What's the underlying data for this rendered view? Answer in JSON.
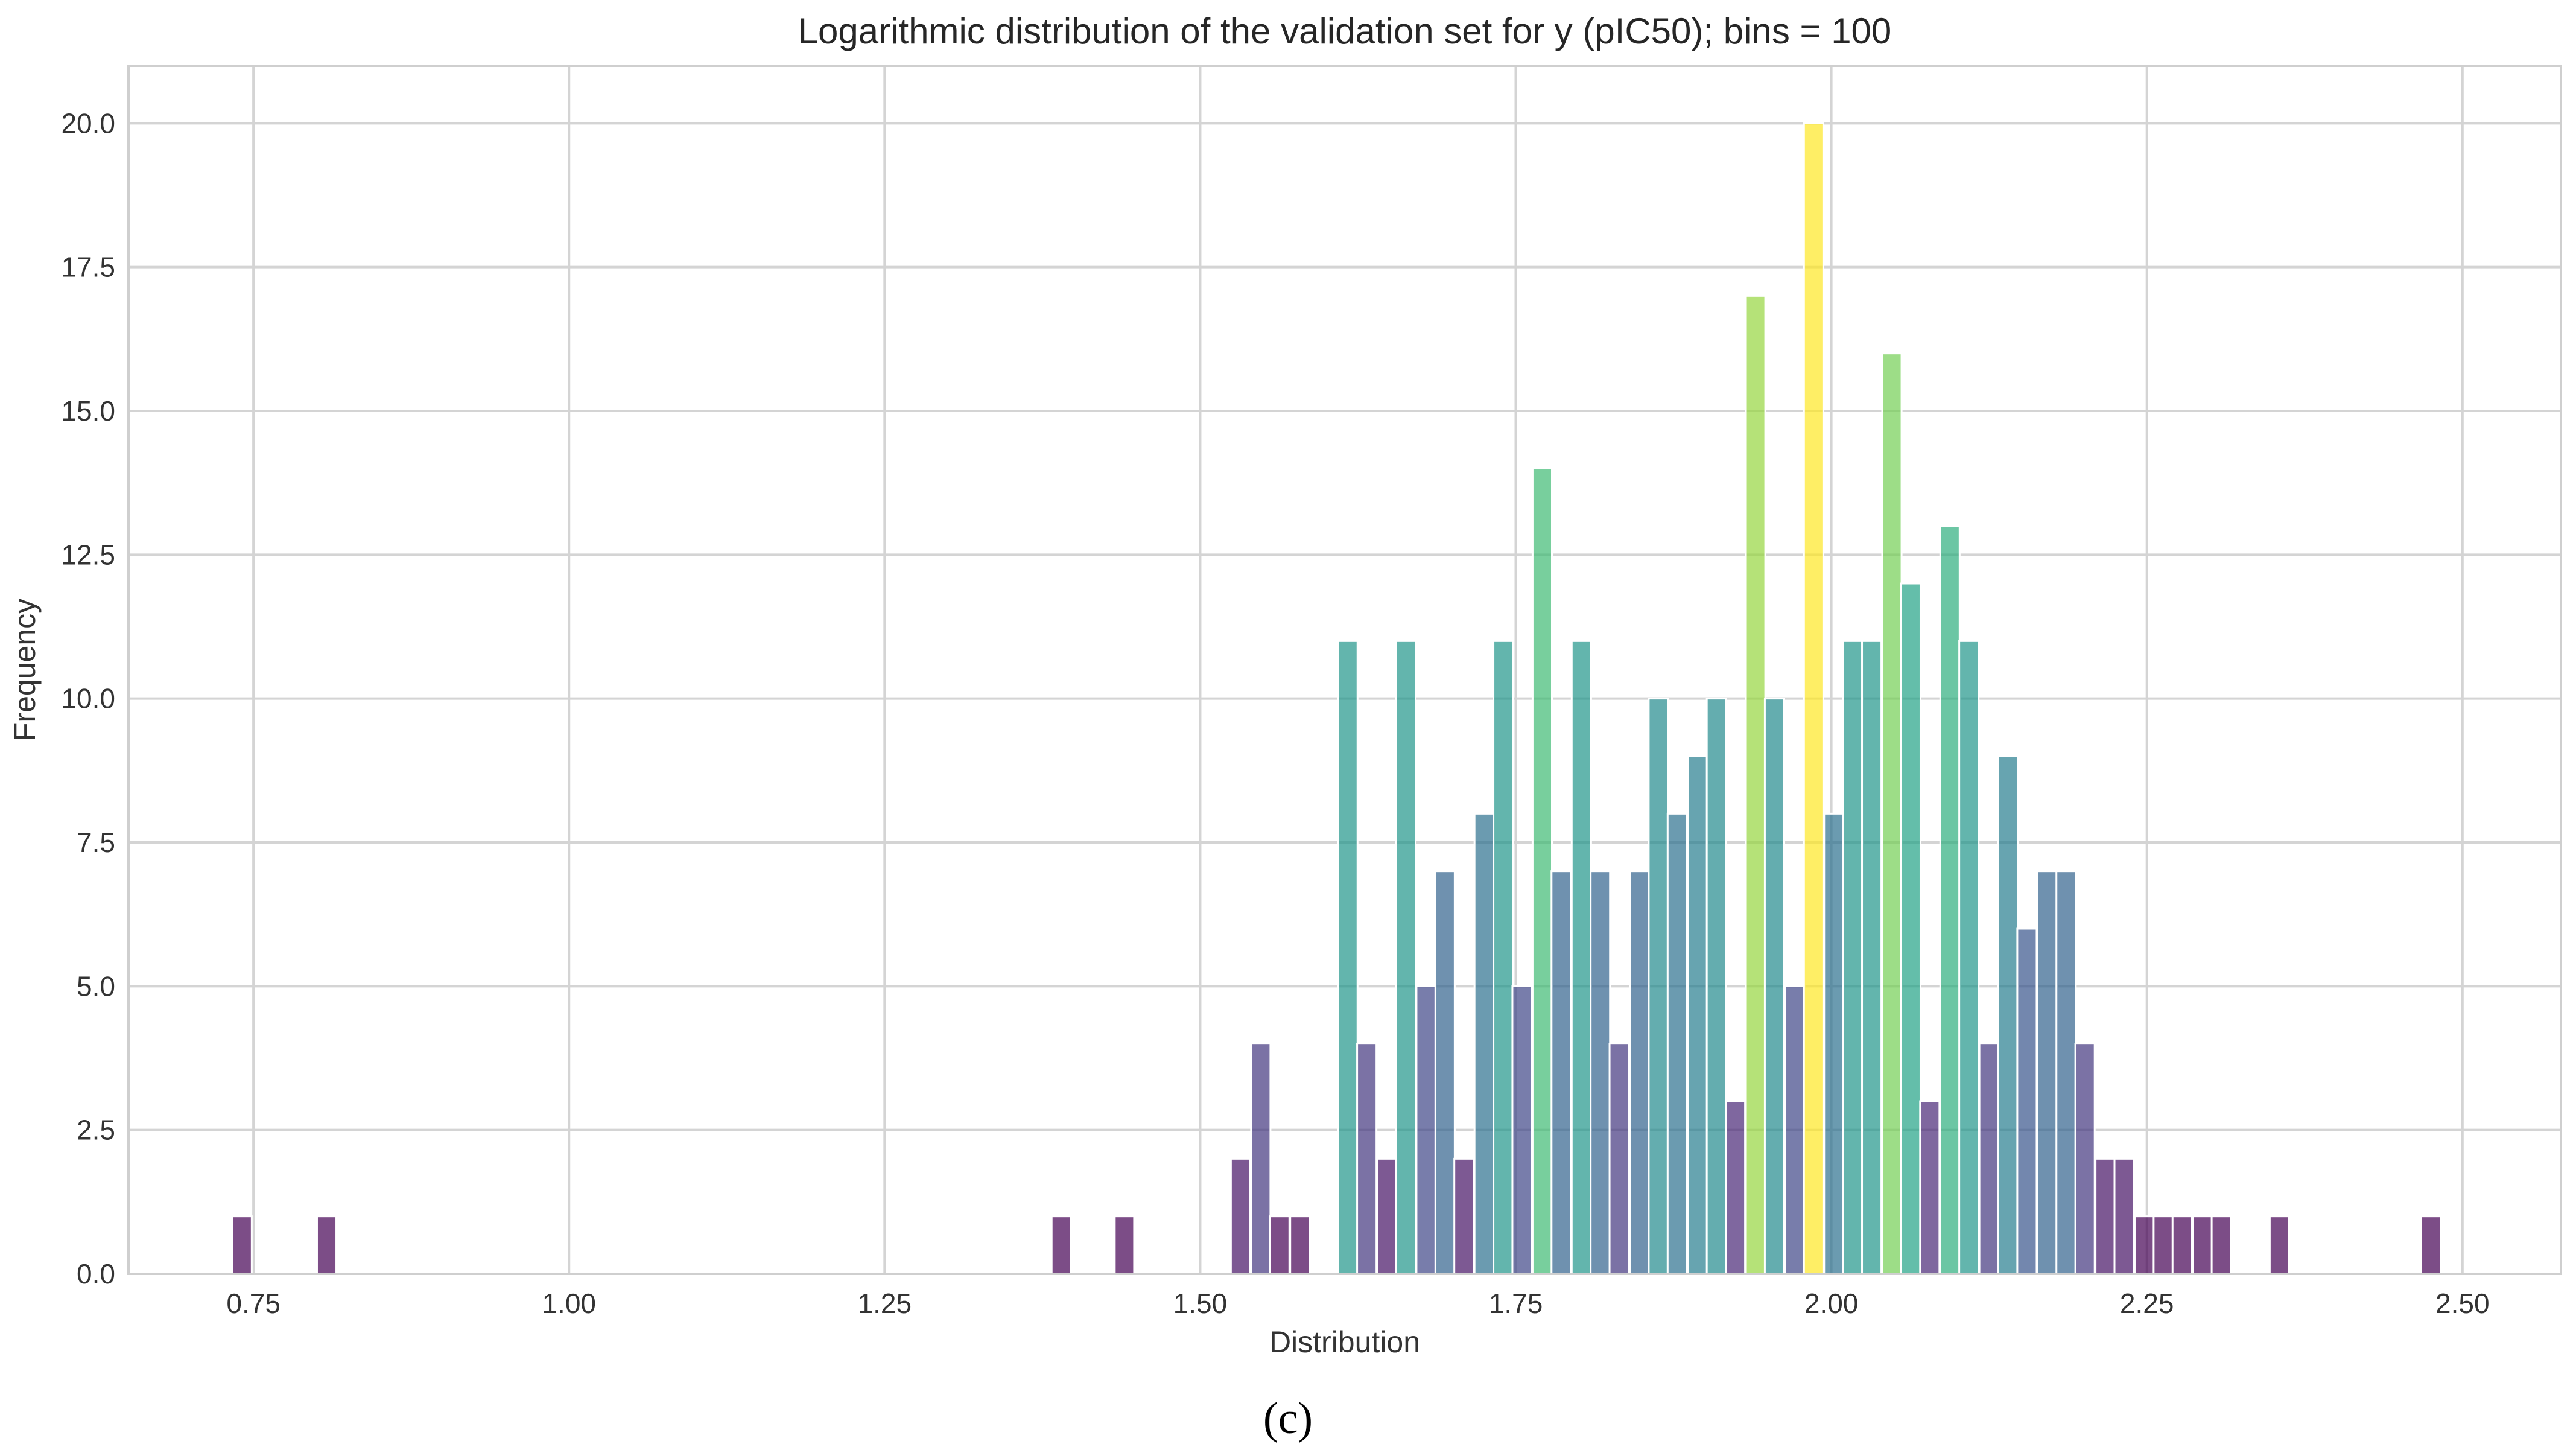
{
  "chart_data": {
    "type": "bar",
    "title": "Logarithmic distribution of the validation set for y (pIC50); bins = 100",
    "xlabel": "Distribution",
    "ylabel": "Frequency",
    "caption": "(c)",
    "xlim": [
      0.651,
      2.578
    ],
    "ylim": [
      0,
      21
    ],
    "grid": true,
    "bin_width": 0.01533,
    "x_ticks": [
      "0.75",
      "1.00",
      "1.25",
      "1.50",
      "1.75",
      "2.00",
      "2.25",
      "2.50"
    ],
    "y_ticks": [
      "0.0",
      "2.5",
      "5.0",
      "7.5",
      "10.0",
      "12.5",
      "15.0",
      "17.5",
      "20.0"
    ],
    "x": [
      0.741,
      0.808,
      1.39,
      1.44,
      1.532,
      1.548,
      1.563,
      1.579,
      1.617,
      1.632,
      1.648,
      1.663,
      1.679,
      1.694,
      1.709,
      1.725,
      1.74,
      1.755,
      1.771,
      1.786,
      1.802,
      1.817,
      1.832,
      1.848,
      1.863,
      1.878,
      1.894,
      1.909,
      1.924,
      1.94,
      1.955,
      1.971,
      1.986,
      2.002,
      2.017,
      2.032,
      2.048,
      2.063,
      2.078,
      2.094,
      2.109,
      2.125,
      2.14,
      2.155,
      2.171,
      2.186,
      2.201,
      2.217,
      2.232,
      2.248,
      2.263,
      2.278,
      2.294,
      2.309,
      2.355,
      2.475
    ],
    "values": [
      1,
      1,
      1,
      1,
      2,
      4,
      1,
      1,
      11,
      4,
      2,
      11,
      5,
      7,
      2,
      8,
      11,
      5,
      14,
      7,
      11,
      7,
      4,
      7,
      10,
      8,
      9,
      10,
      3,
      17,
      10,
      5,
      20,
      8,
      11,
      11,
      16,
      12,
      3,
      13,
      11,
      4,
      9,
      6,
      7,
      7,
      4,
      2,
      2,
      1,
      1,
      1,
      1,
      1,
      1,
      1
    ],
    "colormap": "viridis",
    "bar_alpha": 0.7
  }
}
